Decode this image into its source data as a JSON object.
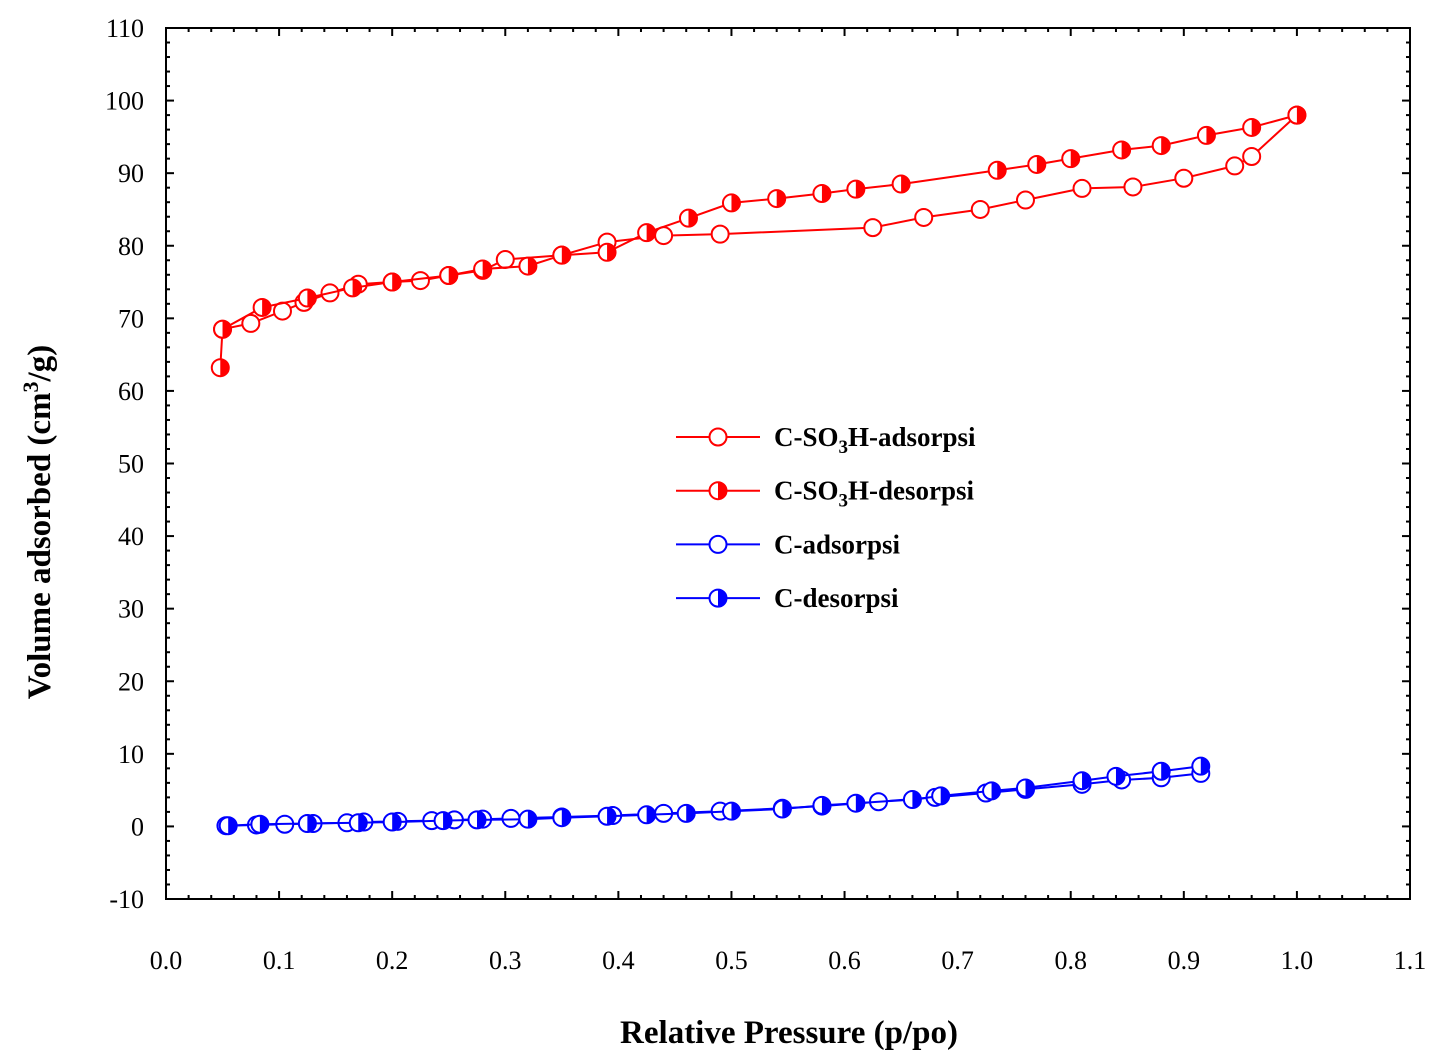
{
  "chart_data": {
    "type": "line",
    "xlabel": "Relative Pressure (p/po)",
    "ylabel": {
      "prefix": "Volume adsorbed (cm",
      "sup": "3",
      "suffix": "/g)"
    },
    "xlim": [
      0.0,
      1.1
    ],
    "ylim": [
      -10,
      110
    ],
    "xticks": [
      "0.0",
      "0.1",
      "0.2",
      "0.3",
      "0.4",
      "0.5",
      "0.6",
      "0.7",
      "0.8",
      "0.9",
      "1.0",
      "1.1"
    ],
    "yticks": [
      "-10",
      "0",
      "10",
      "20",
      "30",
      "40",
      "50",
      "60",
      "70",
      "80",
      "90",
      "100",
      "110"
    ],
    "grid": false,
    "legend_position": "center",
    "series": [
      {
        "name": {
          "pre": "C-SO",
          "sub": "3",
          "post": "H-adsorpsi"
        },
        "color": "#ff0000",
        "marker": "open-circle",
        "x": [
          0.05,
          0.075,
          0.103,
          0.122,
          0.145,
          0.17,
          0.2,
          0.225,
          0.25,
          0.28,
          0.3,
          0.35,
          0.39,
          0.44,
          0.49,
          0.625,
          0.67,
          0.72,
          0.76,
          0.81,
          0.855,
          0.9,
          0.945,
          0.96,
          1.0
        ],
        "y": [
          68.5,
          69.3,
          71.0,
          72.2,
          73.5,
          74.7,
          75.0,
          75.2,
          75.9,
          76.6,
          78.1,
          78.7,
          80.5,
          81.4,
          81.6,
          82.5,
          83.9,
          85.0,
          86.3,
          87.9,
          88.1,
          89.3,
          91.0,
          92.3,
          98.0
        ]
      },
      {
        "name": {
          "pre": "C-SO",
          "sub": "3",
          "post": "H-desorpsi"
        },
        "color": "#ff0000",
        "marker": "half-circle",
        "x": [
          1.0,
          0.96,
          0.92,
          0.88,
          0.845,
          0.8,
          0.77,
          0.735,
          0.65,
          0.61,
          0.58,
          0.54,
          0.5,
          0.462,
          0.425,
          0.39,
          0.35,
          0.32,
          0.28,
          0.25,
          0.2,
          0.165,
          0.125,
          0.085,
          0.05,
          0.048
        ],
        "y": [
          98.0,
          96.3,
          95.2,
          93.8,
          93.2,
          92.0,
          91.2,
          90.4,
          88.5,
          87.8,
          87.2,
          86.5,
          85.9,
          83.8,
          81.8,
          79.1,
          78.7,
          77.2,
          76.8,
          75.9,
          75.0,
          74.2,
          72.8,
          71.5,
          68.5,
          63.2
        ]
      },
      {
        "name": {
          "pre": "C-adsorpsi",
          "sub": "",
          "post": ""
        },
        "color": "#0000ff",
        "marker": "open-circle",
        "x": [
          0.053,
          0.08,
          0.105,
          0.13,
          0.16,
          0.175,
          0.205,
          0.235,
          0.255,
          0.28,
          0.305,
          0.35,
          0.395,
          0.44,
          0.49,
          0.545,
          0.58,
          0.63,
          0.68,
          0.725,
          0.76,
          0.81,
          0.845,
          0.88,
          0.915
        ],
        "y": [
          0.1,
          0.2,
          0.3,
          0.4,
          0.5,
          0.6,
          0.7,
          0.8,
          0.9,
          1.0,
          1.1,
          1.3,
          1.5,
          1.8,
          2.1,
          2.5,
          2.8,
          3.4,
          4.0,
          4.6,
          5.1,
          5.8,
          6.4,
          6.7,
          7.3
        ]
      },
      {
        "name": {
          "pre": "C-desorpsi",
          "sub": "",
          "post": ""
        },
        "color": "#0000ff",
        "marker": "half-circle",
        "x": [
          0.915,
          0.88,
          0.84,
          0.81,
          0.76,
          0.73,
          0.685,
          0.66,
          0.61,
          0.58,
          0.545,
          0.5,
          0.46,
          0.425,
          0.39,
          0.35,
          0.32,
          0.275,
          0.245,
          0.2,
          0.17,
          0.125,
          0.083,
          0.055
        ],
        "y": [
          8.3,
          7.6,
          6.9,
          6.3,
          5.3,
          4.9,
          4.2,
          3.7,
          3.2,
          2.9,
          2.4,
          2.1,
          1.8,
          1.6,
          1.4,
          1.2,
          1.0,
          0.9,
          0.8,
          0.6,
          0.5,
          0.4,
          0.3,
          0.1
        ]
      }
    ]
  }
}
